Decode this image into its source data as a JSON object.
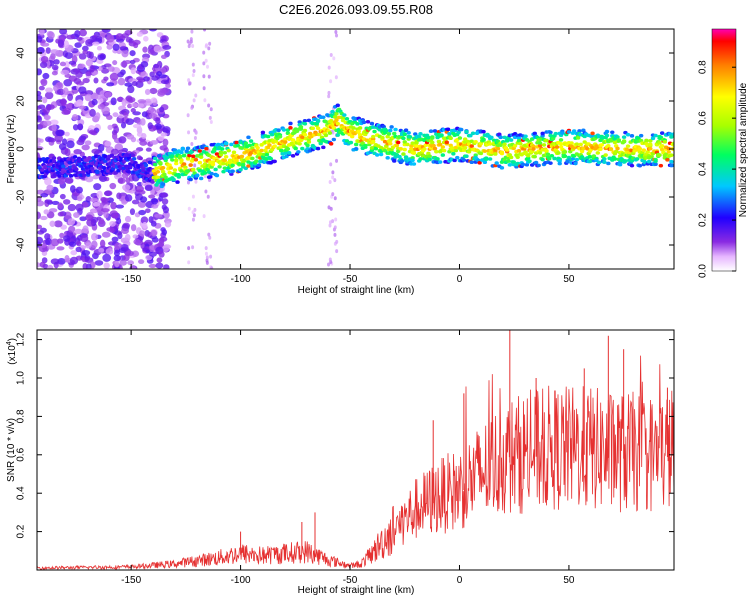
{
  "title": "C2E6.2026.093.09.55.R08",
  "chart_data": [
    {
      "type": "heatmap",
      "name": "spectrogram",
      "xlabel": "Height of straight line (km)",
      "ylabel": "Frequency (Hz)",
      "xlim": [
        -193,
        98
      ],
      "ylim": [
        -50,
        50
      ],
      "xticks": [
        -150,
        -100,
        -50,
        0,
        50
      ],
      "yticks": [
        -40,
        -20,
        0,
        20,
        40
      ],
      "xtick_labels": [
        "-150",
        "-100",
        "-50",
        "0",
        "50"
      ],
      "ytick_labels": [
        "-40",
        "-20",
        "0",
        "20",
        "40"
      ],
      "ridge": {
        "x": [
          -193,
          -150,
          -140,
          -130,
          -100,
          -80,
          -60,
          -55,
          -50,
          -40,
          -20,
          0,
          20,
          50,
          80,
          98
        ],
        "freq": [
          -8,
          -6,
          -10,
          -7,
          -3,
          3,
          8,
          12,
          7,
          4,
          0,
          2,
          -1,
          1,
          0,
          0
        ]
      },
      "colorbar": {
        "label": "Normalized spectral amplitude",
        "range": [
          0,
          0.95
        ],
        "ticks": [
          0.0,
          0.2,
          0.4,
          0.6,
          0.8
        ],
        "tick_labels": [
          "0.0",
          "0.2",
          "0.4",
          "0.6",
          "0.8"
        ]
      }
    },
    {
      "type": "line",
      "name": "snr",
      "xlabel": "Height of straight line (km)",
      "ylabel": "SNR (10 * v/v)",
      "scale_label": "(x10",
      "scale_exp": "4",
      "scale_close": ")",
      "xlim": [
        -193,
        98
      ],
      "ylim": [
        0,
        1.25
      ],
      "xticks": [
        -150,
        -100,
        -50,
        0,
        50
      ],
      "yticks": [
        0.2,
        0.4,
        0.6,
        0.8,
        1.0,
        1.2
      ],
      "xtick_labels": [
        "-150",
        "-100",
        "-50",
        "0",
        "50"
      ],
      "ytick_labels": [
        "0.2",
        "0.4",
        "0.6",
        "0.8",
        "1.0",
        "1.2"
      ],
      "color": "#e53030",
      "envelope": {
        "x": [
          -193,
          -150,
          -130,
          -110,
          -100,
          -90,
          -80,
          -70,
          -60,
          -50,
          -45,
          -40,
          -30,
          -20,
          -10,
          0,
          10,
          20,
          30,
          40,
          50,
          60,
          70,
          80,
          90,
          98
        ],
        "mean": [
          0.01,
          0.015,
          0.03,
          0.06,
          0.08,
          0.07,
          0.08,
          0.09,
          0.05,
          0.02,
          0.03,
          0.08,
          0.2,
          0.3,
          0.36,
          0.4,
          0.48,
          0.55,
          0.58,
          0.6,
          0.6,
          0.6,
          0.58,
          0.58,
          0.57,
          0.6
        ]
      },
      "spikes": {
        "x": [
          -100,
          -72,
          -66,
          -12,
          2,
          23,
          35,
          57,
          68,
          75,
          95
        ],
        "y": [
          0.2,
          0.25,
          0.3,
          0.78,
          0.92,
          1.25,
          1.0,
          1.05,
          1.22,
          1.15,
          0.95
        ]
      }
    }
  ]
}
